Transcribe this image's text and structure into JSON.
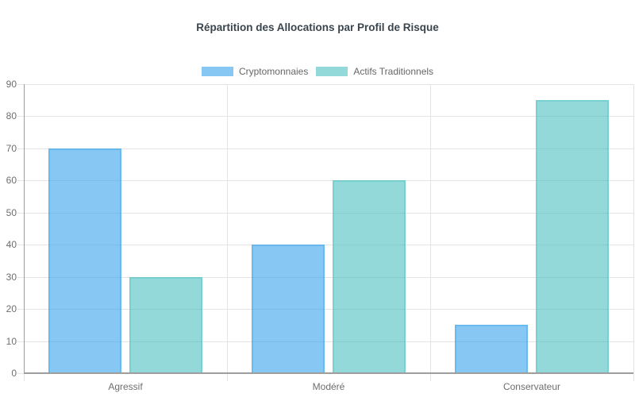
{
  "chart_data": {
    "type": "bar",
    "title": "Répartition des Allocations par Profil de Risque",
    "categories": [
      "Agressif",
      "Modéré",
      "Conservateur"
    ],
    "series": [
      {
        "name": "Cryptomonnaies",
        "values": [
          70,
          40,
          15
        ],
        "fill": "rgba(54, 162, 235, 0.6)",
        "edge": "rgba(54, 162, 235, 0.35)"
      },
      {
        "name": "Actifs Traditionnels",
        "values": [
          30,
          60,
          85
        ],
        "fill": "rgba(75, 192, 192, 0.6)",
        "edge": "rgba(75, 192, 192, 0.35)"
      }
    ],
    "xlabel": "",
    "ylabel": "",
    "ylim": [
      0,
      90
    ],
    "ytick_step": 10,
    "grid": true,
    "legend_position": "top",
    "colors": {
      "grid_line": "#E4E4E4",
      "axis_line": "#9E9E9E",
      "tick_label": "#6E6E6E",
      "title_text": "#3A454E",
      "background": "#FFFFFF"
    }
  }
}
